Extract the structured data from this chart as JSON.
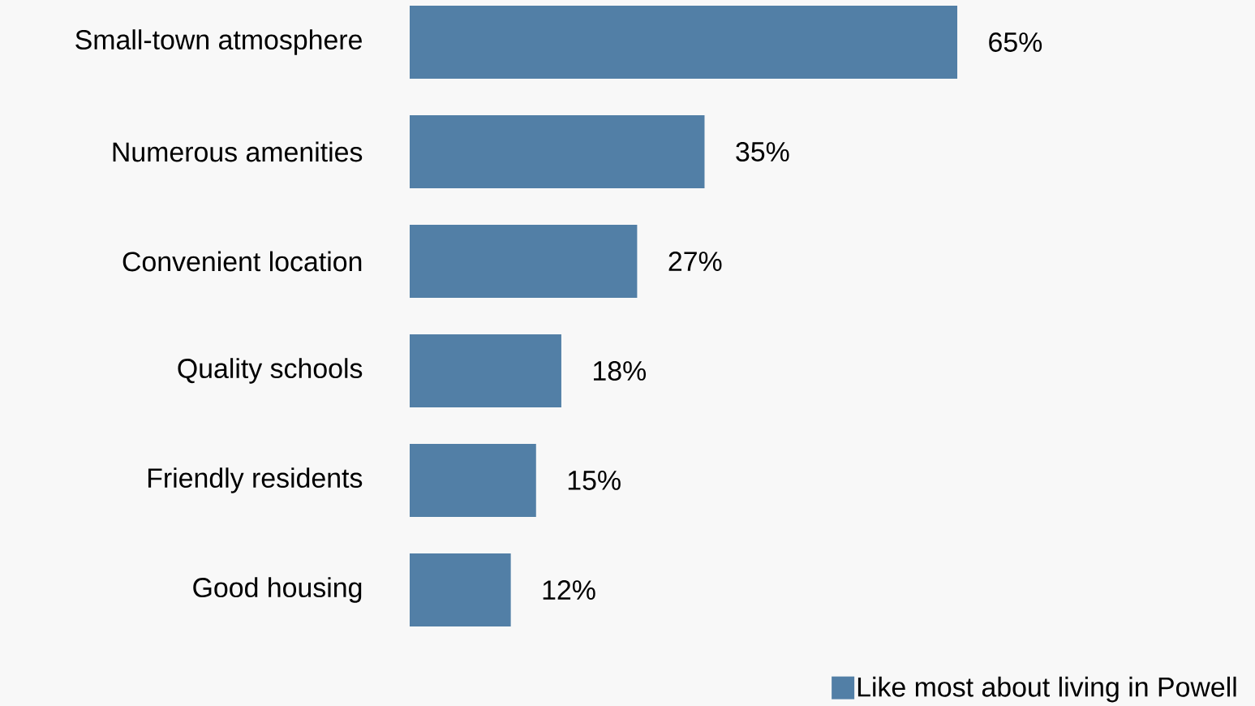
{
  "chart_data": {
    "type": "bar",
    "orientation": "horizontal",
    "categories": [
      "Small-town atmosphere",
      "Numerous amenities",
      "Convenient location",
      "Quality schools",
      "Friendly residents",
      "Good housing"
    ],
    "series": [
      {
        "name": "Like most about living in Powell",
        "color": "#527fa6",
        "values": [
          65,
          35,
          27,
          18,
          15,
          12
        ],
        "value_labels": [
          "65%",
          "35%",
          "27%",
          "18%",
          "15%",
          "12%"
        ]
      }
    ],
    "legend": "bottom right"
  }
}
